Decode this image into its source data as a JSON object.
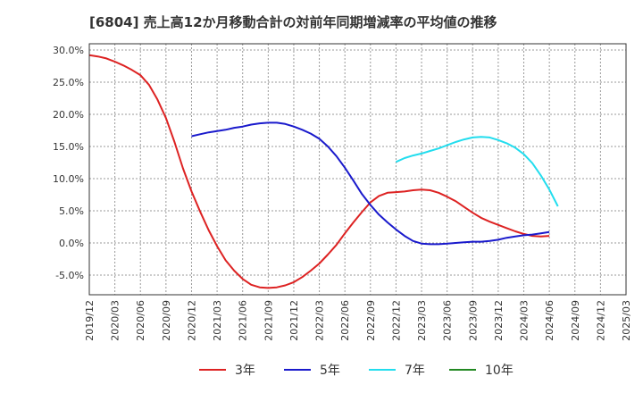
{
  "chart_data": {
    "type": "line",
    "title": "[6804]  売上高12か月移動合計の対前年同期増減率の平均値の推移",
    "xlabel": "",
    "ylabel": "",
    "ylim": [
      -8.0,
      30.0
    ],
    "yticks": [
      30,
      25,
      20,
      15,
      10,
      5,
      0,
      -5
    ],
    "ytick_labels": [
      "30.0%",
      "25.0%",
      "20.0%",
      "15.0%",
      "10.0%",
      "5.0%",
      "0.0%",
      "-5.0%"
    ],
    "xticks": [
      "2019/12",
      "2020/03",
      "2020/06",
      "2020/09",
      "2020/12",
      "2021/03",
      "2021/06",
      "2021/09",
      "2021/12",
      "2022/03",
      "2022/06",
      "2022/09",
      "2022/12",
      "2023/03",
      "2023/06",
      "2023/09",
      "2023/12",
      "2024/03",
      "2024/06",
      "2024/09",
      "2024/12",
      "2025/03"
    ],
    "grid": true,
    "legend_position": "bottom",
    "series": [
      {
        "name": "3年",
        "color": "#dd2222",
        "start_index": 0,
        "values": [
          29.2,
          29.0,
          28.7,
          28.2,
          27.6,
          26.9,
          26.1,
          24.6,
          22.3,
          19.4,
          15.7,
          11.6,
          8.0,
          4.9,
          2.0,
          -0.5,
          -2.7,
          -4.3,
          -5.6,
          -6.5,
          -6.9,
          -7.0,
          -6.9,
          -6.6,
          -6.1,
          -5.3,
          -4.3,
          -3.2,
          -1.8,
          -0.3,
          1.5,
          3.2,
          4.8,
          6.3,
          7.3,
          7.8,
          7.9,
          8.0,
          8.2,
          8.3,
          8.2,
          7.8,
          7.2,
          6.5,
          5.6,
          4.7,
          3.9,
          3.3,
          2.8,
          2.3,
          1.8,
          1.4,
          1.1,
          1.0,
          1.1
        ]
      },
      {
        "name": "5年",
        "color": "#1a1acc",
        "start_index": 12,
        "values": [
          16.6,
          16.9,
          17.2,
          17.4,
          17.6,
          17.9,
          18.1,
          18.4,
          18.6,
          18.7,
          18.7,
          18.5,
          18.1,
          17.6,
          17.0,
          16.2,
          15.0,
          13.5,
          11.7,
          9.7,
          7.6,
          5.9,
          4.4,
          3.2,
          2.1,
          1.1,
          0.3,
          -0.1,
          -0.2,
          -0.2,
          -0.1,
          0.0,
          0.1,
          0.2,
          0.2,
          0.3,
          0.5,
          0.8,
          1.0,
          1.2,
          1.3,
          1.5,
          1.7
        ]
      },
      {
        "name": "7年",
        "color": "#22ddee",
        "start_index": 36,
        "values": [
          12.6,
          13.2,
          13.6,
          13.9,
          14.3,
          14.7,
          15.2,
          15.7,
          16.1,
          16.4,
          16.5,
          16.4,
          16.0,
          15.5,
          14.8,
          13.8,
          12.4,
          10.5,
          8.3,
          5.7
        ]
      },
      {
        "name": "10年",
        "color": "#228822",
        "start_index": 0,
        "values": []
      }
    ]
  }
}
